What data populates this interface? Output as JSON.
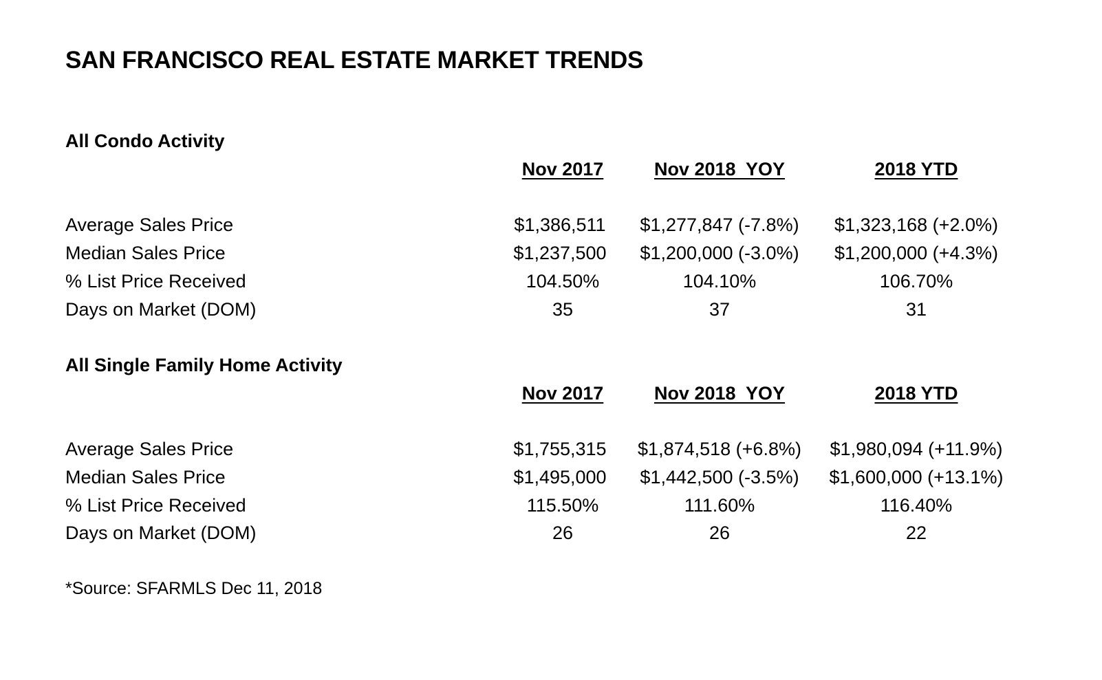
{
  "title": "SAN FRANCISCO REAL ESTATE MARKET TRENDS",
  "sections": [
    {
      "title": "All Condo Activity",
      "columns": [
        "Nov 2017",
        "Nov 2018  YOY",
        "2018 YTD"
      ],
      "rows": [
        {
          "label": "Average Sales Price",
          "values": [
            "$1,386,511",
            "$1,277,847 (-7.8%)",
            "$1,323,168 (+2.0%)"
          ]
        },
        {
          "label": "Median Sales Price",
          "values": [
            "$1,237,500",
            "$1,200,000 (-3.0%)",
            "$1,200,000 (+4.3%)"
          ]
        },
        {
          "label": "% List Price Received",
          "values": [
            "104.50%",
            "104.10%",
            "106.70%"
          ]
        },
        {
          "label": "Days on Market (DOM)",
          "values": [
            "35",
            "37",
            "31"
          ]
        }
      ]
    },
    {
      "title": "All Single Family Home Activity",
      "columns": [
        "Nov 2017",
        "Nov 2018  YOY",
        "2018 YTD"
      ],
      "rows": [
        {
          "label": "Average Sales Price",
          "values": [
            "$1,755,315",
            "$1,874,518 (+6.8%)",
            "$1,980,094 (+11.9%)"
          ]
        },
        {
          "label": "Median Sales Price",
          "values": [
            "$1,495,000",
            "$1,442,500 (-3.5%)",
            "$1,600,000 (+13.1%)"
          ]
        },
        {
          "label": "% List Price Received",
          "values": [
            "115.50%",
            "111.60%",
            "116.40%"
          ]
        },
        {
          "label": "Days on Market (DOM)",
          "values": [
            "26",
            "26",
            "22"
          ]
        }
      ]
    }
  ],
  "source": "*Source: SFARMLS Dec 11, 2018"
}
